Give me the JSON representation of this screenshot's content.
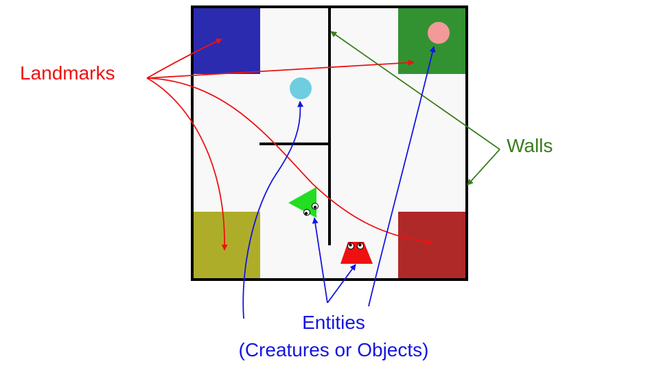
{
  "labels": {
    "landmarks": "Landmarks",
    "walls": "Walls",
    "entities_line1": "Entities",
    "entities_line2": "(Creatures or Objects)"
  },
  "colors": {
    "landmarks_annotation": "#ee1111",
    "walls_annotation": "#3a7d1e",
    "entities_annotation": "#1515e0",
    "wall": "#000000",
    "floor": "#f8f8f8",
    "landmark_blue": "#2b2bb0",
    "landmark_green": "#329232",
    "landmark_olive": "#aead2a",
    "landmark_red": "#b02929",
    "entity_pink_circle": "#f29a9a",
    "entity_cyan_circle": "#6fcde0",
    "entity_green_triangle": "#22dd22",
    "entity_red_trapezoid": "#ee1111"
  },
  "icons": [
    "pink-circle",
    "cyan-circle",
    "green-triangle-creature",
    "red-trapezoid-creature"
  ]
}
